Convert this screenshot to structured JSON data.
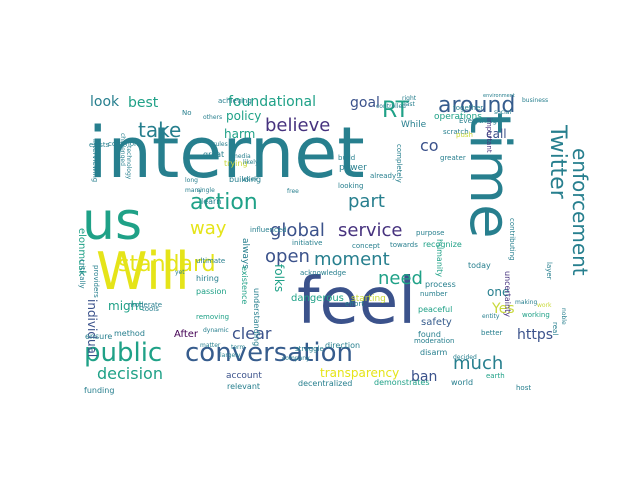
{
  "palette": {
    "purple": "#46327e",
    "indigo": "#3b528b",
    "blue": "#365c8d",
    "teal": "#277f8e",
    "green": "#1fa187",
    "lime": "#4ac16d",
    "yellow": "#c9d93a",
    "gold": "#e5e419",
    "dark": "#440154"
  },
  "words": [
    {
      "text": "internet",
      "size": 70,
      "color": "teal"
    },
    {
      "text": "us",
      "size": 52,
      "color": "green"
    },
    {
      "text": "Will",
      "size": 52,
      "color": "gold"
    },
    {
      "text": "feel",
      "size": 64,
      "color": "indigo"
    },
    {
      "text": "time",
      "size": 56,
      "color": "teal"
    },
    {
      "text": "public",
      "size": 26,
      "color": "green"
    },
    {
      "text": "conversation",
      "size": 26,
      "color": "blue"
    },
    {
      "text": "standard",
      "size": 22,
      "color": "gold"
    },
    {
      "text": "action",
      "size": 22,
      "color": "green"
    },
    {
      "text": "take",
      "size": 20,
      "color": "teal"
    },
    {
      "text": "believe",
      "size": 18,
      "color": "purple"
    },
    {
      "text": "RT",
      "size": 22,
      "color": "green"
    },
    {
      "text": "around",
      "size": 22,
      "color": "blue"
    },
    {
      "text": "Twitter",
      "size": 22,
      "color": "teal"
    },
    {
      "text": "enforcement",
      "size": 20,
      "color": "teal"
    },
    {
      "text": "global",
      "size": 18,
      "color": "indigo"
    },
    {
      "text": "service",
      "size": 18,
      "color": "purple"
    },
    {
      "text": "open",
      "size": 18,
      "color": "indigo"
    },
    {
      "text": "moment",
      "size": 18,
      "color": "teal"
    },
    {
      "text": "need",
      "size": 18,
      "color": "green"
    },
    {
      "text": "way",
      "size": 18,
      "color": "gold"
    },
    {
      "text": "part",
      "size": 18,
      "color": "teal"
    },
    {
      "text": "much",
      "size": 18,
      "color": "teal"
    },
    {
      "text": "decision",
      "size": 16,
      "color": "green"
    },
    {
      "text": "clear",
      "size": 16,
      "color": "indigo"
    },
    {
      "text": "transparency",
      "size": 12,
      "color": "gold"
    },
    {
      "text": "ban",
      "size": 14,
      "color": "indigo"
    },
    {
      "text": "Yes",
      "size": 14,
      "color": "yellow"
    },
    {
      "text": "https",
      "size": 14,
      "color": "indigo"
    },
    {
      "text": "foundational",
      "size": 14,
      "color": "green"
    },
    {
      "text": "goal",
      "size": 14,
      "color": "indigo"
    },
    {
      "text": "best",
      "size": 14,
      "color": "green"
    },
    {
      "text": "look",
      "size": 14,
      "color": "teal"
    },
    {
      "text": "policy",
      "size": 12,
      "color": "green"
    },
    {
      "text": "harm",
      "size": 12,
      "color": "green"
    },
    {
      "text": "call",
      "size": 12,
      "color": "indigo"
    },
    {
      "text": "co",
      "size": 16,
      "color": "indigo"
    },
    {
      "text": "might",
      "size": 12,
      "color": "green"
    },
    {
      "text": "individual",
      "size": 12,
      "color": "indigo"
    },
    {
      "text": "folks",
      "size": 12,
      "color": "green"
    },
    {
      "text": "dangerous",
      "size": 10,
      "color": "green"
    },
    {
      "text": "one",
      "size": 12,
      "color": "teal"
    },
    {
      "text": "safety",
      "size": 10,
      "color": "blue"
    },
    {
      "text": "After",
      "size": 10,
      "color": "dark"
    },
    {
      "text": "account",
      "size": 9,
      "color": "indigo"
    },
    {
      "text": "operations",
      "size": 9,
      "color": "green"
    },
    {
      "text": "While",
      "size": 9,
      "color": "teal"
    },
    {
      "text": "elonmusk",
      "size": 10,
      "color": "green"
    },
    {
      "text": "always",
      "size": 9,
      "color": "teal"
    },
    {
      "text": "hiring",
      "size": 8,
      "color": "teal"
    },
    {
      "text": "passion",
      "size": 8,
      "color": "green"
    },
    {
      "text": "existence",
      "size": 8,
      "color": "green"
    },
    {
      "text": "uncertainty",
      "size": 8,
      "color": "purple"
    },
    {
      "text": "today",
      "size": 8,
      "color": "teal"
    },
    {
      "text": "humanity",
      "size": 8,
      "color": "green"
    },
    {
      "text": "recognize",
      "size": 8,
      "color": "green"
    },
    {
      "text": "process",
      "size": 8,
      "color": "teal"
    },
    {
      "text": "ensure",
      "size": 8,
      "color": "teal"
    },
    {
      "text": "method",
      "size": 8,
      "color": "teal"
    },
    {
      "text": "funding",
      "size": 8,
      "color": "teal"
    },
    {
      "text": "relevant",
      "size": 8,
      "color": "teal"
    },
    {
      "text": "decentralized",
      "size": 8,
      "color": "teal"
    },
    {
      "text": "demonstrates",
      "size": 8,
      "color": "green"
    },
    {
      "text": "world",
      "size": 8,
      "color": "teal"
    },
    {
      "text": "host",
      "size": 7,
      "color": "teal"
    },
    {
      "text": "earth",
      "size": 7,
      "color": "green"
    },
    {
      "text": "better",
      "size": 7,
      "color": "teal"
    },
    {
      "text": "working",
      "size": 7,
      "color": "green"
    },
    {
      "text": "layer",
      "size": 7,
      "color": "teal"
    },
    {
      "text": "peaceful",
      "size": 8,
      "color": "green"
    },
    {
      "text": "disarm",
      "size": 8,
      "color": "teal"
    },
    {
      "text": "moderation",
      "size": 7,
      "color": "teal"
    },
    {
      "text": "found",
      "size": 8,
      "color": "teal"
    },
    {
      "text": "direction",
      "size": 8,
      "color": "teal"
    },
    {
      "text": "struggle",
      "size": 7,
      "color": "teal"
    },
    {
      "text": "company",
      "size": 6,
      "color": "teal"
    },
    {
      "text": "tools",
      "size": 7,
      "color": "teal"
    },
    {
      "text": "removing",
      "size": 7,
      "color": "green"
    },
    {
      "text": "understanding",
      "size": 8,
      "color": "teal"
    },
    {
      "text": "effort",
      "size": 7,
      "color": "teal"
    },
    {
      "text": "starting",
      "size": 9,
      "color": "yellow"
    },
    {
      "text": "towards",
      "size": 7,
      "color": "teal"
    },
    {
      "text": "purpose",
      "size": 7,
      "color": "teal"
    },
    {
      "text": "concept",
      "size": 7,
      "color": "teal"
    },
    {
      "text": "initiative",
      "size": 7,
      "color": "teal"
    },
    {
      "text": "acknowledge",
      "size": 7,
      "color": "teal"
    },
    {
      "text": "influenced",
      "size": 7,
      "color": "teal"
    },
    {
      "text": "learn",
      "size": 8,
      "color": "teal"
    },
    {
      "text": "single",
      "size": 6,
      "color": "teal"
    },
    {
      "text": "ultimate",
      "size": 7,
      "color": "teal"
    },
    {
      "text": "providers",
      "size": 7,
      "color": "teal"
    },
    {
      "text": "critically",
      "size": 7,
      "color": "teal"
    },
    {
      "text": "moderate",
      "size": 7,
      "color": "teal"
    },
    {
      "text": "looking",
      "size": 7,
      "color": "teal"
    },
    {
      "text": "power",
      "size": 9,
      "color": "teal"
    },
    {
      "text": "building",
      "size": 8,
      "color": "teal"
    },
    {
      "text": "trying",
      "size": 8,
      "color": "yellow"
    },
    {
      "text": "great",
      "size": 8,
      "color": "teal"
    },
    {
      "text": "build",
      "size": 7,
      "color": "teal"
    },
    {
      "text": "already",
      "size": 7,
      "color": "teal"
    },
    {
      "text": "greater",
      "size": 7,
      "color": "teal"
    },
    {
      "text": "scratch",
      "size": 7,
      "color": "teal"
    },
    {
      "text": "push",
      "size": 7,
      "color": "yellow"
    },
    {
      "text": "Everything",
      "size": 7,
      "color": "teal"
    },
    {
      "text": "together",
      "size": 7,
      "color": "teal"
    },
    {
      "text": "important",
      "size": 7,
      "color": "purple"
    },
    {
      "text": "interviewing",
      "size": 7,
      "color": "teal"
    },
    {
      "text": "exists",
      "size": 7,
      "color": "teal"
    },
    {
      "text": "achieving",
      "size": 7,
      "color": "teal"
    },
    {
      "text": "common",
      "size": 7,
      "color": "teal"
    },
    {
      "text": "challenged",
      "size": 6,
      "color": "teal"
    },
    {
      "text": "technology",
      "size": 6,
      "color": "teal"
    },
    {
      "text": "number",
      "size": 7,
      "color": "teal"
    },
    {
      "text": "contributing",
      "size": 7,
      "color": "teal"
    },
    {
      "text": "real",
      "size": 7,
      "color": "teal"
    },
    {
      "text": "entity",
      "size": 6,
      "color": "teal"
    },
    {
      "text": "dynamic",
      "size": 6,
      "color": "teal"
    },
    {
      "text": "matter",
      "size": 6,
      "color": "teal"
    },
    {
      "text": "term",
      "size": 6,
      "color": "teal"
    },
    {
      "text": "largely",
      "size": 6,
      "color": "teal"
    },
    {
      "text": "decided",
      "size": 6,
      "color": "teal"
    },
    {
      "text": "yet",
      "size": 6,
      "color": "teal"
    },
    {
      "text": "No",
      "size": 7,
      "color": "teal"
    },
    {
      "text": "last",
      "size": 6,
      "color": "teal"
    },
    {
      "text": "media",
      "size": 6,
      "color": "teal"
    },
    {
      "text": "likely",
      "size": 6,
      "color": "teal"
    },
    {
      "text": "social",
      "size": 6,
      "color": "teal"
    },
    {
      "text": "business",
      "size": 6,
      "color": "teal"
    },
    {
      "text": "controlled",
      "size": 6,
      "color": "teal"
    },
    {
      "text": "others",
      "size": 6,
      "color": "teal"
    },
    {
      "text": "week",
      "size": 6,
      "color": "teal"
    },
    {
      "text": "long",
      "size": 6,
      "color": "teal"
    },
    {
      "text": "many",
      "size": 6,
      "color": "teal"
    },
    {
      "text": "free",
      "size": 6,
      "color": "teal"
    },
    {
      "text": "rules",
      "size": 6,
      "color": "teal"
    },
    {
      "text": "completely",
      "size": 7,
      "color": "teal"
    },
    {
      "text": "right",
      "size": 6,
      "color": "teal"
    },
    {
      "text": "noble",
      "size": 6,
      "color": "teal"
    },
    {
      "text": "environment",
      "size": 5,
      "color": "teal"
    },
    {
      "text": "work",
      "size": 6,
      "color": "yellow"
    },
    {
      "text": "making",
      "size": 6,
      "color": "teal"
    }
  ]
}
